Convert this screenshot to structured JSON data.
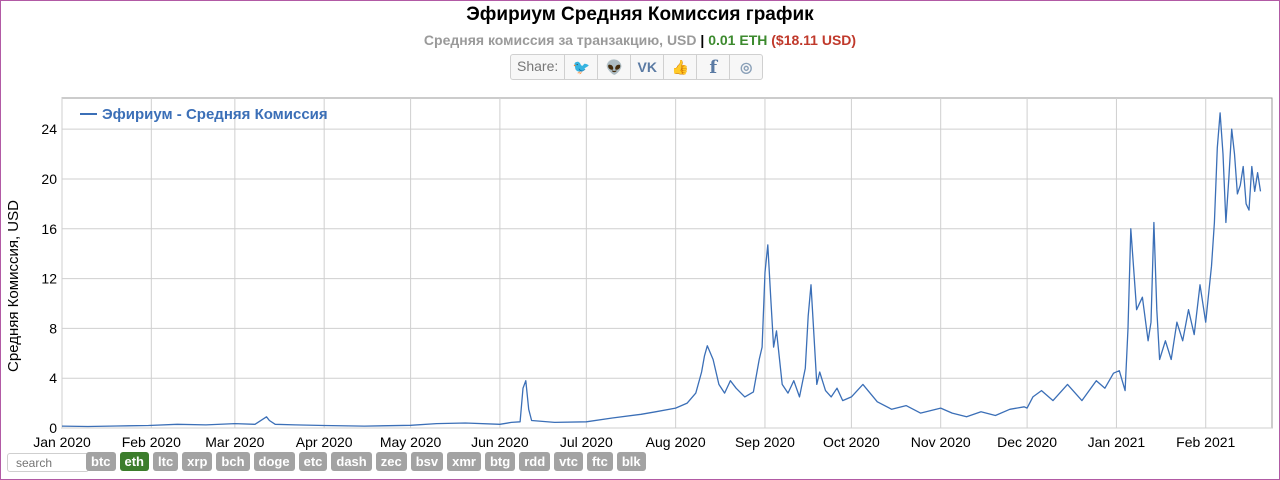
{
  "page": {
    "title": "Эфириум Средняя Комиссия график",
    "subtitle": {
      "text": "Средняя комиссия за транзакцию, USD",
      "separator": "|",
      "eth_value": "0.01 ETH",
      "usd_value": "($18.11 USD)"
    },
    "share": {
      "label": "Share:",
      "buttons": [
        {
          "name": "twitter-icon",
          "glyph": "🐦"
        },
        {
          "name": "reddit-icon",
          "glyph": "👽"
        },
        {
          "name": "vk-icon",
          "glyph": "VK"
        },
        {
          "name": "like-icon",
          "glyph": "👍"
        },
        {
          "name": "facebook-icon",
          "glyph": "f"
        },
        {
          "name": "weibo-icon",
          "glyph": "◎"
        }
      ]
    },
    "search": {
      "placeholder": "search"
    },
    "coins": [
      "btc",
      "eth",
      "ltc",
      "xrp",
      "bch",
      "doge",
      "etc",
      "dash",
      "zec",
      "bsv",
      "xmr",
      "btg",
      "rdd",
      "vtc",
      "ftc",
      "blk"
    ],
    "active_coin": "eth",
    "colors": {
      "line": "#3b6fb7",
      "active_coin": "#3c7d2c",
      "coin": "#a3a3a3",
      "eth_value": "#3c8a2e",
      "usd_value": "#c0392b"
    }
  },
  "chart_data": {
    "type": "line",
    "title": "Эфириум Средняя Комиссия график",
    "ylabel": "Средняя Комиссия, USD",
    "xlabel": "",
    "ylim": [
      0,
      26.5
    ],
    "yticks": [
      0,
      4,
      8,
      12,
      16,
      20,
      24
    ],
    "grid": true,
    "legend_position": "top-left",
    "x_ticks": [
      "Jan 2020",
      "Feb 2020",
      "Mar 2020",
      "Apr 2020",
      "May 2020",
      "Jun 2020",
      "Jul 2020",
      "Aug 2020",
      "Sep 2020",
      "Oct 2020",
      "Nov 2020",
      "Dec 2020",
      "Jan 2021",
      "Feb 2021"
    ],
    "series": [
      {
        "name": "Эфириум - Средняя Комиссия",
        "color": "#3b6fb7",
        "x": [
          "2020-01-01",
          "2020-01-10",
          "2020-01-20",
          "2020-01-31",
          "2020-02-10",
          "2020-02-20",
          "2020-03-01",
          "2020-03-08",
          "2020-03-12",
          "2020-03-13",
          "2020-03-15",
          "2020-03-22",
          "2020-04-01",
          "2020-04-15",
          "2020-05-01",
          "2020-05-10",
          "2020-05-20",
          "2020-06-01",
          "2020-06-05",
          "2020-06-08",
          "2020-06-09",
          "2020-06-10",
          "2020-06-11",
          "2020-06-12",
          "2020-06-20",
          "2020-07-01",
          "2020-07-10",
          "2020-07-20",
          "2020-07-25",
          "2020-08-01",
          "2020-08-05",
          "2020-08-08",
          "2020-08-10",
          "2020-08-11",
          "2020-08-12",
          "2020-08-14",
          "2020-08-16",
          "2020-08-18",
          "2020-08-20",
          "2020-08-22",
          "2020-08-25",
          "2020-08-28",
          "2020-08-30",
          "2020-08-31",
          "2020-09-01",
          "2020-09-02",
          "2020-09-03",
          "2020-09-04",
          "2020-09-05",
          "2020-09-07",
          "2020-09-09",
          "2020-09-11",
          "2020-09-13",
          "2020-09-15",
          "2020-09-16",
          "2020-09-17",
          "2020-09-18",
          "2020-09-19",
          "2020-09-20",
          "2020-09-22",
          "2020-09-24",
          "2020-09-26",
          "2020-09-28",
          "2020-10-01",
          "2020-10-05",
          "2020-10-10",
          "2020-10-15",
          "2020-10-20",
          "2020-10-25",
          "2020-11-01",
          "2020-11-05",
          "2020-11-10",
          "2020-11-15",
          "2020-11-20",
          "2020-11-25",
          "2020-11-30",
          "2020-12-01",
          "2020-12-03",
          "2020-12-06",
          "2020-12-10",
          "2020-12-15",
          "2020-12-20",
          "2020-12-25",
          "2020-12-28",
          "2020-12-31",
          "2021-01-02",
          "2021-01-04",
          "2021-01-05",
          "2021-01-06",
          "2021-01-08",
          "2021-01-10",
          "2021-01-12",
          "2021-01-13",
          "2021-01-14",
          "2021-01-15",
          "2021-01-16",
          "2021-01-18",
          "2021-01-20",
          "2021-01-22",
          "2021-01-24",
          "2021-01-26",
          "2021-01-28",
          "2021-01-30",
          "2021-02-01",
          "2021-02-03",
          "2021-02-04",
          "2021-02-05",
          "2021-02-06",
          "2021-02-07",
          "2021-02-08",
          "2021-02-09",
          "2021-02-10",
          "2021-02-11",
          "2021-02-12",
          "2021-02-13",
          "2021-02-14",
          "2021-02-15",
          "2021-02-16",
          "2021-02-17",
          "2021-02-18",
          "2021-02-19",
          "2021-02-20"
        ],
        "y": [
          0.15,
          0.12,
          0.16,
          0.2,
          0.3,
          0.25,
          0.35,
          0.3,
          0.9,
          0.6,
          0.3,
          0.25,
          0.2,
          0.15,
          0.22,
          0.35,
          0.4,
          0.3,
          0.45,
          0.5,
          3.2,
          3.8,
          1.5,
          0.6,
          0.45,
          0.5,
          0.8,
          1.1,
          1.3,
          1.6,
          2.0,
          2.8,
          4.5,
          5.8,
          6.6,
          5.5,
          3.5,
          2.8,
          3.8,
          3.2,
          2.5,
          2.9,
          5.5,
          6.5,
          12.5,
          14.7,
          10.5,
          6.5,
          7.8,
          3.5,
          2.8,
          3.8,
          2.5,
          4.8,
          9.0,
          11.5,
          7.5,
          3.5,
          4.5,
          3.0,
          2.5,
          3.2,
          2.2,
          2.5,
          3.5,
          2.1,
          1.5,
          1.8,
          1.2,
          1.6,
          1.2,
          0.9,
          1.3,
          1.0,
          1.5,
          1.7,
          1.6,
          2.5,
          3.0,
          2.2,
          3.5,
          2.2,
          3.8,
          3.2,
          4.4,
          4.6,
          3.0,
          8.0,
          16.0,
          9.5,
          10.5,
          7.0,
          8.5,
          16.5,
          9.5,
          5.5,
          7.0,
          5.5,
          8.5,
          7.0,
          9.5,
          7.5,
          11.5,
          8.5,
          13.0,
          16.5,
          22.5,
          25.3,
          22.0,
          16.5,
          20.0,
          24.0,
          22.0,
          18.8,
          19.5,
          21.0,
          18.0,
          17.5,
          21.0,
          19.0,
          20.5,
          19.0
        ]
      }
    ]
  }
}
